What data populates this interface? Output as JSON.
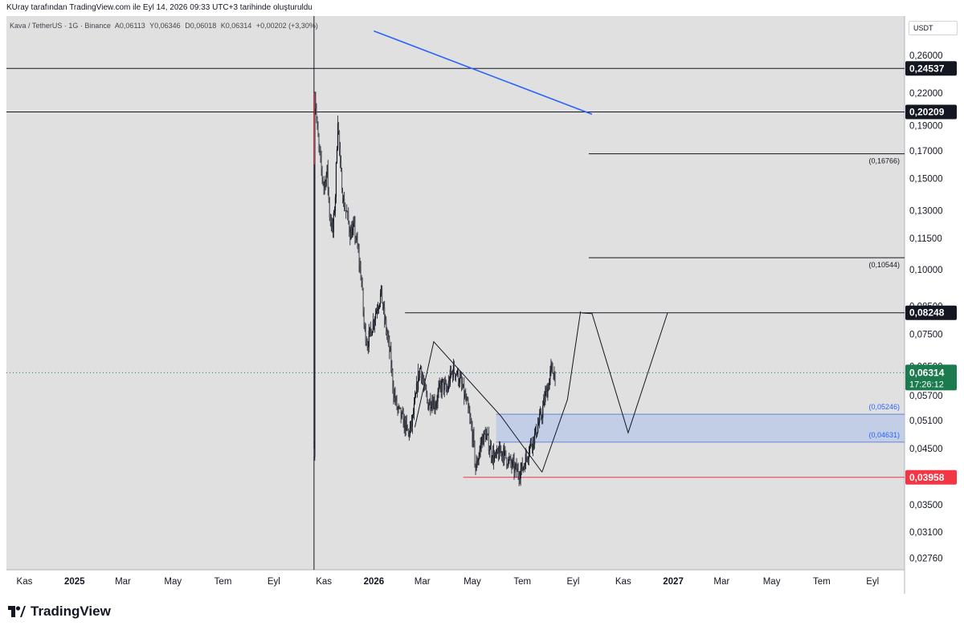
{
  "header": {
    "caption": "KUray tarafından TradingView.com ile Eyl 14, 2026 09:33 UTC+3 tarihinde oluşturuldu"
  },
  "symbol_line": {
    "symbol": "Kava / TetherUS · 1G · Binance",
    "open": "A0,06113",
    "high": "Y0,06346",
    "low": "D0,06018",
    "close": "K0,06314",
    "change": "+0,00202 (+3,30%)"
  },
  "currency_chip": "USDT",
  "brand": {
    "name": "TradingView",
    "logo_icon": "tradingview-logo-icon"
  },
  "colors": {
    "background": "#ffffff",
    "plot_background": "#e0e0e0",
    "candle_up": "#131722",
    "candle_down": "#131722",
    "current_price_badge": "#1b7a4e",
    "support_level_badge": "#f23645",
    "level_badge": "#131722",
    "zone_fill": "#b8c7e8",
    "trend_line": "#2962ff"
  },
  "chart_data": {
    "type": "candlestick",
    "instrument": "Kava / TetherUS",
    "interval": "1G",
    "exchange": "Binance",
    "y_scale": "log",
    "ylim": [
      0.0262,
      0.31
    ],
    "x_domain_start": "2024-10-10",
    "x_domain_end": "2027-10-10",
    "y_ticks": [
      "0,26000",
      "0,22000",
      "0,19000",
      "0,17000",
      "0,15000",
      "0,13000",
      "0,11500",
      "0,10000",
      "0,08500",
      "0,07500",
      "0,06500",
      "0,05700",
      "0,05100",
      "0,04500",
      "0,03950",
      "0,03500",
      "0,03100",
      "0,02760"
    ],
    "x_ticks": [
      {
        "label": "Kas",
        "date": "2024-11-01",
        "bold": false
      },
      {
        "label": "2025",
        "date": "2025-01-01",
        "bold": true
      },
      {
        "label": "Mar",
        "date": "2025-03-01",
        "bold": false
      },
      {
        "label": "May",
        "date": "2025-05-01",
        "bold": false
      },
      {
        "label": "Tem",
        "date": "2025-07-01",
        "bold": false
      },
      {
        "label": "Eyl",
        "date": "2025-09-01",
        "bold": false
      },
      {
        "label": "Kas",
        "date": "2025-11-01",
        "bold": false
      },
      {
        "label": "2026",
        "date": "2026-01-01",
        "bold": true
      },
      {
        "label": "Mar",
        "date": "2026-03-01",
        "bold": false
      },
      {
        "label": "May",
        "date": "2026-05-01",
        "bold": false
      },
      {
        "label": "Tem",
        "date": "2026-07-01",
        "bold": false
      },
      {
        "label": "Eyl",
        "date": "2026-09-01",
        "bold": false
      },
      {
        "label": "Kas",
        "date": "2026-11-01",
        "bold": false
      },
      {
        "label": "2027",
        "date": "2027-01-01",
        "bold": true
      },
      {
        "label": "Mar",
        "date": "2027-03-01",
        "bold": false
      },
      {
        "label": "May",
        "date": "2027-05-01",
        "bold": false
      },
      {
        "label": "Tem",
        "date": "2027-07-01",
        "bold": false
      },
      {
        "label": "Eyl",
        "date": "2027-09-01",
        "bold": false
      }
    ],
    "horizontal_levels": [
      {
        "price": 0.24537,
        "label": "0,24537",
        "style": "badge-dark",
        "start": "2024-10-10"
      },
      {
        "price": 0.20209,
        "label": "0,20209",
        "style": "badge-dark",
        "start": "2024-10-10"
      },
      {
        "price": 0.08248,
        "label": "0,08248",
        "style": "badge-dark",
        "start": "2026-02-08"
      },
      {
        "price": 0.03958,
        "label": "0,03958",
        "style": "badge-red",
        "start": "2026-04-20"
      }
    ],
    "target_lines": [
      {
        "price": 0.16766,
        "label": "(0,16766)",
        "start": "2026-09-20"
      },
      {
        "price": 0.10544,
        "label": "(0,10544)",
        "start": "2026-09-20"
      }
    ],
    "zone": {
      "top": 0.05246,
      "bottom": 0.04631,
      "top_label": "(0,05246)",
      "bottom_label": "(0,04631)",
      "start": "2026-05-30"
    },
    "current_price": {
      "price": 0.06314,
      "label": "0,06314",
      "countdown": "17:26:12"
    },
    "vertical_line": {
      "date": "2025-10-20"
    },
    "trend_line": {
      "points": [
        [
          "2026-01-01",
          0.29
        ],
        [
          "2026-09-24",
          0.2
        ]
      ]
    },
    "projection_path": [
      [
        "2026-09-12",
        0.0824
      ],
      [
        "2026-09-24",
        0.0822
      ],
      [
        "2026-11-07",
        0.0483
      ],
      [
        "2026-12-25",
        0.0824
      ]
    ],
    "pattern_lines": [
      [
        [
          "2026-02-20",
          0.0495
        ],
        [
          "2026-03-15",
          0.0725
        ],
        [
          "2026-06-05",
          0.052
        ],
        [
          "2026-07-25",
          0.0405
        ]
      ],
      [
        [
          "2026-07-25",
          0.0405
        ],
        [
          "2026-08-25",
          0.056
        ],
        [
          "2026-09-10",
          0.083
        ]
      ]
    ],
    "price_path": [
      [
        "2025-10-20",
        0.045
      ],
      [
        "2025-10-21",
        0.22
      ],
      [
        "2025-10-24",
        0.185
      ],
      [
        "2025-10-28",
        0.16
      ],
      [
        "2025-11-01",
        0.145
      ],
      [
        "2025-11-05",
        0.155
      ],
      [
        "2025-11-08",
        0.128
      ],
      [
        "2025-11-12",
        0.118
      ],
      [
        "2025-11-15",
        0.14
      ],
      [
        "2025-11-18",
        0.198
      ],
      [
        "2025-11-21",
        0.158
      ],
      [
        "2025-11-25",
        0.135
      ],
      [
        "2025-11-29",
        0.128
      ],
      [
        "2025-12-03",
        0.118
      ],
      [
        "2025-12-08",
        0.12
      ],
      [
        "2025-12-12",
        0.11
      ],
      [
        "2025-12-17",
        0.095
      ],
      [
        "2025-12-20",
        0.078
      ],
      [
        "2025-12-24",
        0.072
      ],
      [
        "2025-12-30",
        0.078
      ],
      [
        "2026-01-05",
        0.085
      ],
      [
        "2026-01-10",
        0.09
      ],
      [
        "2026-01-13",
        0.082
      ],
      [
        "2026-01-17",
        0.075
      ],
      [
        "2026-01-21",
        0.068
      ],
      [
        "2026-01-25",
        0.058
      ],
      [
        "2026-01-29",
        0.054
      ],
      [
        "2026-02-03",
        0.052
      ],
      [
        "2026-02-08",
        0.05
      ],
      [
        "2026-02-12",
        0.048
      ],
      [
        "2026-02-16",
        0.05
      ],
      [
        "2026-02-20",
        0.055
      ],
      [
        "2026-02-24",
        0.062
      ],
      [
        "2026-02-27",
        0.065
      ],
      [
        "2026-03-03",
        0.059
      ],
      [
        "2026-03-08",
        0.055
      ],
      [
        "2026-03-12",
        0.056
      ],
      [
        "2026-03-17",
        0.055
      ],
      [
        "2026-03-21",
        0.058
      ],
      [
        "2026-03-26",
        0.06
      ],
      [
        "2026-03-31",
        0.058
      ],
      [
        "2026-04-04",
        0.062
      ],
      [
        "2026-04-08",
        0.064
      ],
      [
        "2026-04-12",
        0.063
      ],
      [
        "2026-04-16",
        0.061
      ],
      [
        "2026-04-20",
        0.058
      ],
      [
        "2026-04-24",
        0.055
      ],
      [
        "2026-04-28",
        0.051
      ],
      [
        "2026-05-02",
        0.047
      ],
      [
        "2026-05-05",
        0.041
      ],
      [
        "2026-05-09",
        0.044
      ],
      [
        "2026-05-13",
        0.047
      ],
      [
        "2026-05-17",
        0.048
      ],
      [
        "2026-05-21",
        0.046
      ],
      [
        "2026-05-25",
        0.044
      ],
      [
        "2026-05-29",
        0.043
      ],
      [
        "2026-06-02",
        0.044
      ],
      [
        "2026-06-07",
        0.0445
      ],
      [
        "2026-06-12",
        0.043
      ],
      [
        "2026-06-17",
        0.042
      ],
      [
        "2026-06-22",
        0.041
      ],
      [
        "2026-06-26",
        0.0405
      ],
      [
        "2026-07-01",
        0.0412
      ],
      [
        "2026-07-06",
        0.0435
      ],
      [
        "2026-07-11",
        0.046
      ],
      [
        "2026-07-16",
        0.0475
      ],
      [
        "2026-07-20",
        0.05
      ],
      [
        "2026-07-24",
        0.052
      ],
      [
        "2026-07-29",
        0.057
      ],
      [
        "2026-08-02",
        0.06
      ],
      [
        "2026-08-05",
        0.064
      ],
      [
        "2026-08-08",
        0.0631
      ],
      [
        "2026-08-11",
        0.06314
      ]
    ]
  }
}
